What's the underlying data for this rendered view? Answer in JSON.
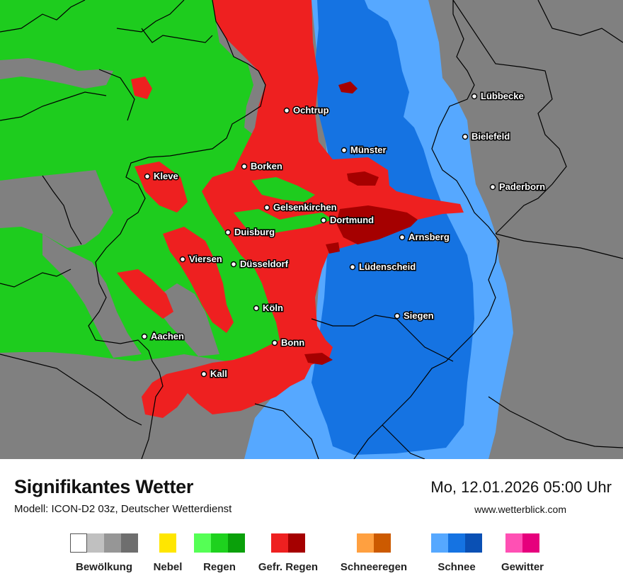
{
  "map": {
    "colors": {
      "land_gray": "#808080",
      "rain": "#1ecc1e",
      "freezing_rain": "#ee2020",
      "freezing_rain_heavy": "#a50000",
      "snow_light": "#56a8ff",
      "snow": "#1573e2",
      "border": "#000000"
    },
    "cities": [
      {
        "name": "Ochtrup"
      },
      {
        "name": "Lübbecke"
      },
      {
        "name": "Bielefeld"
      },
      {
        "name": "Münster"
      },
      {
        "name": "Borken"
      },
      {
        "name": "Kleve"
      },
      {
        "name": "Paderborn"
      },
      {
        "name": "Gelsenkirchen"
      },
      {
        "name": "Dortmund"
      },
      {
        "name": "Duisburg"
      },
      {
        "name": "Arnsberg"
      },
      {
        "name": "Viersen"
      },
      {
        "name": "Düsseldorf"
      },
      {
        "name": "Lüdenscheid"
      },
      {
        "name": "Köln"
      },
      {
        "name": "Siegen"
      },
      {
        "name": "Aachen"
      },
      {
        "name": "Bonn"
      },
      {
        "name": "Kall"
      }
    ]
  },
  "header": {
    "title": "Signifikantes Wetter",
    "model": "Modell: ICON-D2 03z, Deutscher Wetterdienst",
    "datetime": "Mo, 12.01.2026 05:00 Uhr",
    "website": "www.wetterblick.com"
  },
  "legend": [
    {
      "label": "Bewölkung",
      "colors": [
        "#ffffff",
        "#c0c0c0",
        "#969696",
        "#6e6e6e"
      ]
    },
    {
      "label": "Nebel",
      "colors": [
        "#ffe600"
      ]
    },
    {
      "label": "Regen",
      "colors": [
        "#55ff55",
        "#1ed21e",
        "#0aa00a"
      ]
    },
    {
      "label": "Gefr. Regen",
      "colors": [
        "#ee2020",
        "#a50000"
      ]
    },
    {
      "label": "Schneeregen",
      "colors": [
        "#ffa040",
        "#cc5a00"
      ]
    },
    {
      "label": "Schnee",
      "colors": [
        "#56a8ff",
        "#1573e2",
        "#0a50b4"
      ]
    },
    {
      "label": "Gewitter",
      "colors": [
        "#ff50b4",
        "#e6007d"
      ]
    }
  ]
}
